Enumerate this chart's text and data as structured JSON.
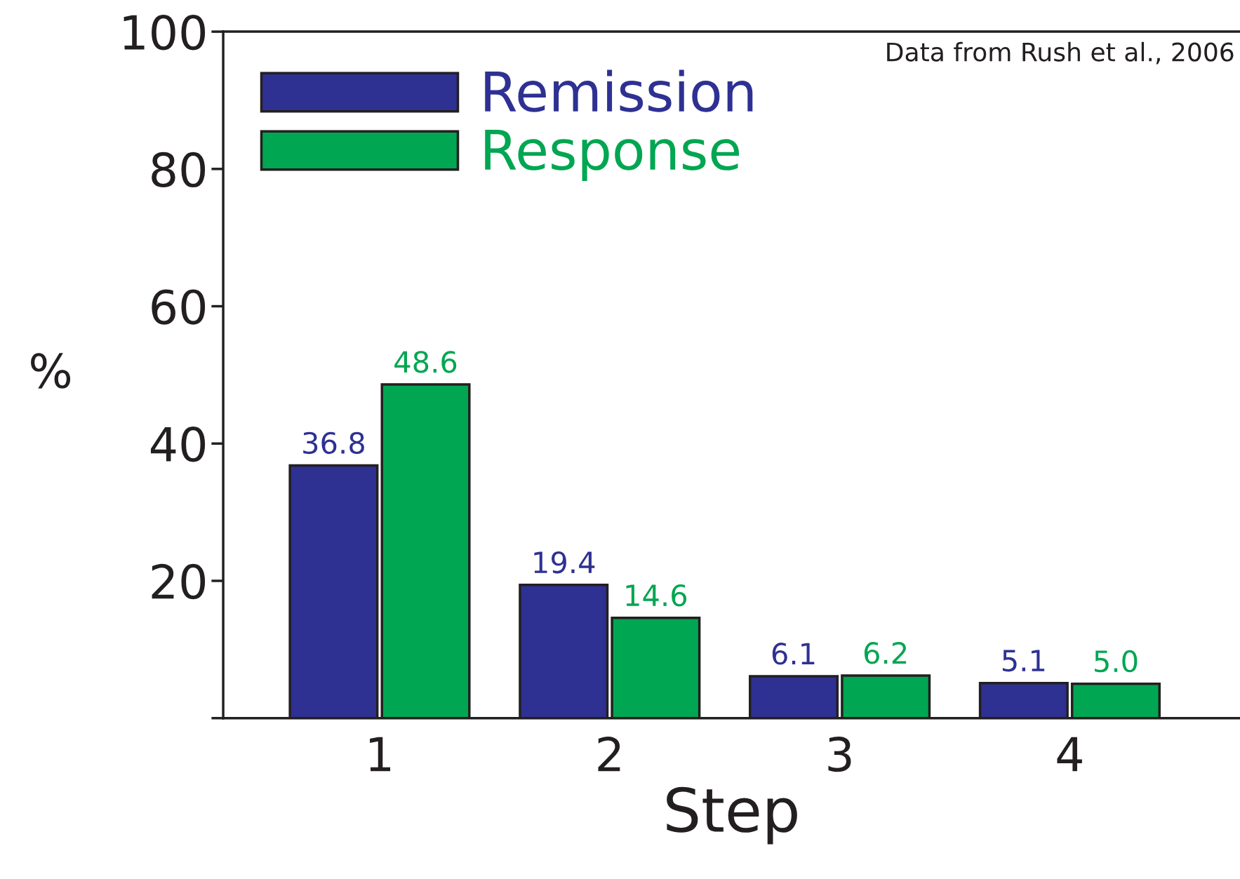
{
  "chart_data": {
    "type": "bar",
    "xlabel": "Step",
    "ylabel": "%",
    "categories": [
      "1",
      "2",
      "3",
      "4"
    ],
    "series": [
      {
        "name": "Remission",
        "color": "#2e3192",
        "values": [
          36.8,
          19.4,
          6.1,
          5.1
        ],
        "value_labels": [
          "36.8",
          "19.4",
          "6.1",
          "5.1"
        ]
      },
      {
        "name": "Response",
        "color": "#00a651",
        "values": [
          48.6,
          14.6,
          6.2,
          5.0
        ],
        "value_labels": [
          "48.6",
          "14.6",
          "6.2",
          "5.0"
        ]
      }
    ],
    "ylim": [
      0,
      100
    ],
    "yticks": [
      {
        "value": 0,
        "label": null
      },
      20,
      40,
      60,
      80,
      100
    ],
    "grid": false,
    "legend": "top left",
    "annotations": [
      "Data from Rush et al., 2006"
    ]
  }
}
